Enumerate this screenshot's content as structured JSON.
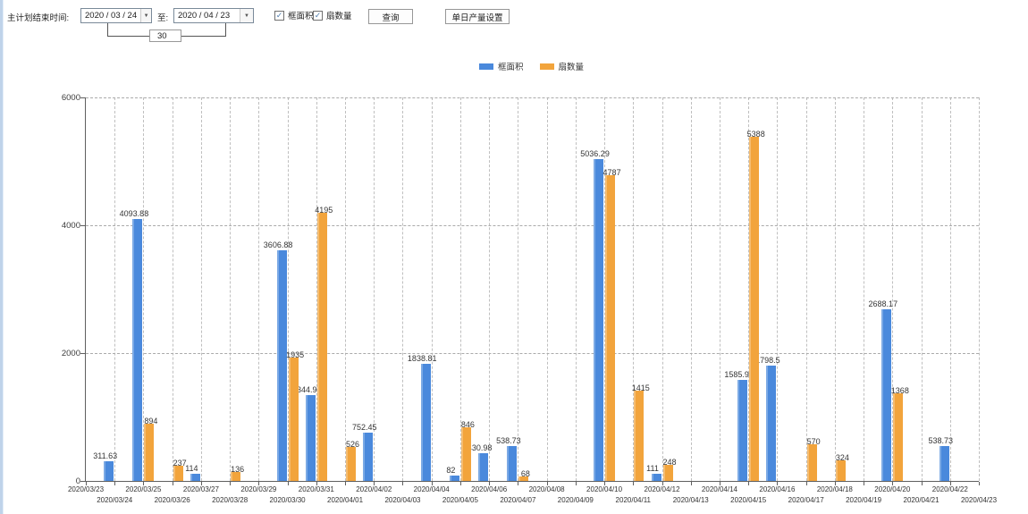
{
  "toolbar": {
    "plan_end_label": "主计划结束时间:",
    "date_from": "2020 / 03 / 24",
    "to_label": "至:",
    "date_to": "2020 / 04 / 23",
    "days_between": "30",
    "checkbox_frame_area": {
      "label": "框面积",
      "checked": true
    },
    "checkbox_fan_count": {
      "label": "扇数量",
      "checked": true
    },
    "query_button": "查询",
    "daily_output_button": "单日产量设置"
  },
  "legend": [
    {
      "label": "框面积",
      "color": "#4a89dc"
    },
    {
      "label": "扇数量",
      "color": "#f2a43c"
    }
  ],
  "colors": {
    "bar_blue": "#4a89dc",
    "bar_orange": "#f2a43c",
    "axis": "#5f5f5f",
    "grid": "#bfbfbf"
  },
  "chart_data": {
    "type": "bar",
    "title": "",
    "xlabel": "",
    "ylabel": "",
    "ylim": [
      0,
      6000
    ],
    "yticks": [
      0,
      2000,
      4000,
      6000
    ],
    "grid": true,
    "legend_position": "top-center",
    "categories": [
      "2020/03/23",
      "2020/03/24",
      "2020/03/25",
      "2020/03/26",
      "2020/03/27",
      "2020/03/28",
      "2020/03/29",
      "2020/03/30",
      "2020/03/31",
      "2020/04/01",
      "2020/04/02",
      "2020/04/03",
      "2020/04/04",
      "2020/04/05",
      "2020/04/06",
      "2020/04/07",
      "2020/04/08",
      "2020/04/09",
      "2020/04/10",
      "2020/04/11",
      "2020/04/12",
      "2020/04/13",
      "2020/04/14",
      "2020/04/15",
      "2020/04/16",
      "2020/04/17",
      "2020/04/18",
      "2020/04/19",
      "2020/04/20",
      "2020/04/21",
      "2020/04/22",
      "2020/04/23"
    ],
    "series": [
      {
        "name": "框面积",
        "id": "frame-area",
        "color": "#4a89dc",
        "values": [
          null,
          311.63,
          4093.88,
          null,
          114,
          null,
          null,
          3606.88,
          1344.95,
          null,
          752.45,
          null,
          1838.81,
          82,
          430.98,
          538.73,
          null,
          null,
          5036.29,
          null,
          111,
          null,
          null,
          1585.96,
          1798.5,
          null,
          null,
          null,
          2688.17,
          null,
          538.73,
          null
        ]
      },
      {
        "name": "扇数量",
        "id": "fan-count",
        "color": "#f2a43c",
        "values": [
          null,
          null,
          894,
          237,
          null,
          136,
          null,
          1935,
          4195,
          526,
          null,
          null,
          null,
          846,
          null,
          68,
          null,
          null,
          4787,
          1415,
          248,
          null,
          null,
          5388,
          null,
          570,
          324,
          null,
          1368,
          null,
          null,
          null
        ]
      }
    ]
  }
}
